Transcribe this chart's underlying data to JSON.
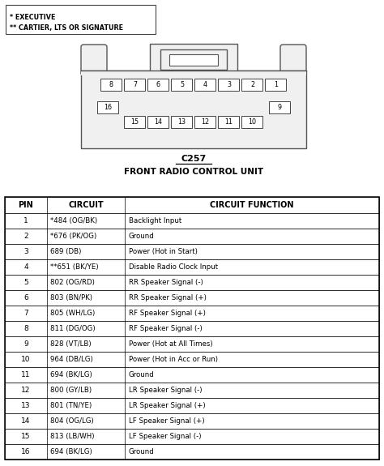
{
  "title_connector": "C257",
  "title_unit": "FRONT RADIO CONTROL UNIT",
  "legend_lines": [
    "* EXECUTIVE",
    "** CARTIER, LTS OR SIGNATURE"
  ],
  "table_headers": [
    "PIN",
    "CIRCUIT",
    "CIRCUIT FUNCTION"
  ],
  "table_rows": [
    [
      "1",
      "*484 (OG/BK)",
      "Backlight Input"
    ],
    [
      "2",
      "*676 (PK/OG)",
      "Ground"
    ],
    [
      "3",
      "689 (DB)",
      "Power (Hot in Start)"
    ],
    [
      "4",
      "**651 (BK/YE)",
      "Disable Radio Clock Input"
    ],
    [
      "5",
      "802 (OG/RD)",
      "RR Speaker Signal (-)"
    ],
    [
      "6",
      "803 (BN/PK)",
      "RR Speaker Signal (+)"
    ],
    [
      "7",
      "805 (WH/LG)",
      "RF Speaker Signal (+)"
    ],
    [
      "8",
      "811 (DG/OG)",
      "RF Speaker Signal (-)"
    ],
    [
      "9",
      "828 (VT/LB)",
      "Power (Hot at All Times)"
    ],
    [
      "10",
      "964 (DB/LG)",
      "Power (Hot in Acc or Run)"
    ],
    [
      "11",
      "694 (BK/LG)",
      "Ground"
    ],
    [
      "12",
      "800 (GY/LB)",
      "LR Speaker Signal (-)"
    ],
    [
      "13",
      "801 (TN/YE)",
      "LR Speaker Signal (+)"
    ],
    [
      "14",
      "804 (OG/LG)",
      "LF Speaker Signal (+)"
    ],
    [
      "15",
      "813 (LB/WH)",
      "LF Speaker Signal (-)"
    ],
    [
      "16",
      "694 (BK/LG)",
      "Ground"
    ]
  ],
  "top_row_pins": [
    "8",
    "7",
    "6",
    "5",
    "4",
    "3",
    "2",
    "1"
  ],
  "bottom_row_pins_mid": [
    "15",
    "14",
    "13",
    "12",
    "11",
    "10"
  ],
  "connector_fill": "#f0f0f0",
  "connector_border": "#555555",
  "white": "#ffffff",
  "black": "#000000"
}
